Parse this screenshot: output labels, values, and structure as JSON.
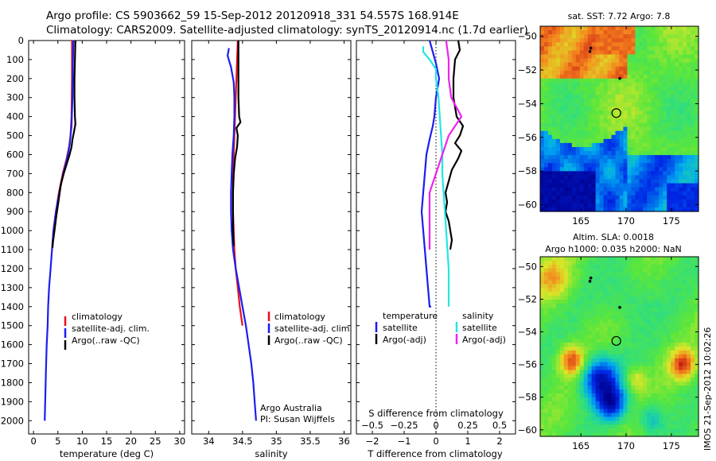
{
  "title": {
    "line1": "Argo profile: CS 5903662_59 15-Sep-2012 20120918_331 54.557S 168.914E",
    "line2": "Climatology: CARS2009. Satellite-adjusted climatology: synTS_20120914.nc (1.7d earlier)"
  },
  "colors": {
    "red": "#e8101a",
    "blue": "#1d1df0",
    "black": "#000000",
    "cyan": "#22e6e6",
    "magenta": "#ee22ee"
  },
  "chart_data": [
    {
      "type": "line",
      "name": "temperature-profile",
      "xlabel": "temperature (deg C)",
      "ylabel": "",
      "xlim": [
        -1,
        31
      ],
      "ylim": [
        2070,
        0
      ],
      "xticks": [
        0,
        5,
        10,
        15,
        20,
        25,
        30
      ],
      "yticks": [
        0,
        100,
        200,
        300,
        400,
        500,
        600,
        700,
        800,
        900,
        1000,
        1100,
        1200,
        1300,
        1400,
        1500,
        1600,
        1700,
        1800,
        1900,
        2000
      ],
      "legend": [
        "climatology",
        "satellite-adj. clim.",
        "Argo(..raw -QC)"
      ],
      "series": [
        {
          "name": "climatology",
          "color": "red",
          "points": [
            [
              7.9,
              0
            ],
            [
              7.9,
              200
            ],
            [
              7.8,
              400
            ],
            [
              7.6,
              500
            ],
            [
              7.3,
              560
            ],
            [
              6.8,
              620
            ],
            [
              6.0,
              700
            ],
            [
              5.2,
              800
            ],
            [
              4.6,
              900
            ],
            [
              4.1,
              1000
            ],
            [
              3.8,
              1100
            ]
          ]
        },
        {
          "name": "satellite-adj. clim.",
          "color": "blue",
          "points": [
            [
              8.2,
              0
            ],
            [
              8.1,
              100
            ],
            [
              8.0,
              300
            ],
            [
              7.8,
              450
            ],
            [
              7.4,
              550
            ],
            [
              6.9,
              620
            ],
            [
              6.1,
              700
            ],
            [
              5.3,
              800
            ],
            [
              4.6,
              900
            ],
            [
              4.1,
              1000
            ],
            [
              3.8,
              1100
            ],
            [
              3.5,
              1200
            ],
            [
              3.2,
              1300
            ],
            [
              3.0,
              1400
            ],
            [
              2.9,
              1500
            ],
            [
              2.7,
              1600
            ],
            [
              2.6,
              1700
            ],
            [
              2.5,
              1800
            ],
            [
              2.4,
              1900
            ],
            [
              2.3,
              2000
            ]
          ]
        },
        {
          "name": "Argo(..raw -QC)",
          "color": "black",
          "points": [
            [
              8.6,
              0
            ],
            [
              8.5,
              100
            ],
            [
              8.4,
              200
            ],
            [
              8.4,
              300
            ],
            [
              8.5,
              400
            ],
            [
              8.6,
              440
            ],
            [
              8.3,
              480
            ],
            [
              8.0,
              520
            ],
            [
              7.8,
              560
            ],
            [
              7.4,
              600
            ],
            [
              6.8,
              650
            ],
            [
              6.2,
              700
            ],
            [
              5.6,
              760
            ],
            [
              5.1,
              850
            ],
            [
              4.7,
              920
            ],
            [
              4.3,
              1000
            ],
            [
              4.0,
              1060
            ],
            [
              3.9,
              1090
            ]
          ]
        }
      ]
    },
    {
      "type": "line",
      "name": "salinity-profile",
      "xlabel": "salinity",
      "ylabel": "",
      "xlim": [
        33.75,
        36.1
      ],
      "ylim": [
        2070,
        0
      ],
      "xticks": [
        34,
        34.5,
        35,
        35.5,
        36
      ],
      "legend": [
        "climatology",
        "satellite-adj. clim.",
        "Argo(..raw -QC)"
      ],
      "annotation": [
        "Argo Australia",
        "PI: Susan Wijffels"
      ],
      "series": [
        {
          "name": "climatology",
          "color": "red",
          "points": [
            [
              34.43,
              0
            ],
            [
              34.42,
              100
            ],
            [
              34.41,
              200
            ],
            [
              34.4,
              300
            ],
            [
              34.39,
              400
            ],
            [
              34.38,
              500
            ],
            [
              34.37,
              600
            ],
            [
              34.36,
              700
            ],
            [
              34.36,
              800
            ],
            [
              34.36,
              900
            ],
            [
              34.37,
              1000
            ],
            [
              34.38,
              1100
            ],
            [
              34.4,
              1200
            ],
            [
              34.43,
              1300
            ],
            [
              34.46,
              1400
            ],
            [
              34.5,
              1500
            ]
          ]
        },
        {
          "name": "satellite-adj. clim.",
          "color": "blue",
          "points": [
            [
              34.3,
              40
            ],
            [
              34.28,
              80
            ],
            [
              34.33,
              140
            ],
            [
              34.37,
              220
            ],
            [
              34.38,
              300
            ],
            [
              34.38,
              400
            ],
            [
              34.37,
              500
            ],
            [
              34.35,
              600
            ],
            [
              34.34,
              700
            ],
            [
              34.33,
              800
            ],
            [
              34.33,
              900
            ],
            [
              34.34,
              1000
            ],
            [
              34.36,
              1100
            ],
            [
              34.4,
              1200
            ],
            [
              34.45,
              1300
            ],
            [
              34.5,
              1400
            ],
            [
              34.55,
              1500
            ],
            [
              34.59,
              1600
            ],
            [
              34.63,
              1700
            ],
            [
              34.66,
              1800
            ],
            [
              34.68,
              1900
            ],
            [
              34.7,
              2000
            ]
          ]
        },
        {
          "name": "Argo(..raw -QC)",
          "color": "black",
          "points": [
            [
              34.44,
              0
            ],
            [
              34.44,
              100
            ],
            [
              34.44,
              200
            ],
            [
              34.44,
              300
            ],
            [
              34.45,
              400
            ],
            [
              34.47,
              430
            ],
            [
              34.41,
              460
            ],
            [
              34.43,
              500
            ],
            [
              34.42,
              560
            ],
            [
              34.39,
              620
            ],
            [
              34.37,
              700
            ],
            [
              34.36,
              800
            ],
            [
              34.36,
              900
            ],
            [
              34.36,
              1000
            ],
            [
              34.37,
              1080
            ]
          ]
        }
      ]
    },
    {
      "type": "line",
      "name": "difference-profile",
      "xlabel": "T difference from climatology",
      "xlabel2": "S difference from climatology",
      "xlim": [
        -2.5,
        2.5
      ],
      "ylim": [
        2070,
        0
      ],
      "xticks": [
        -2,
        -1,
        0,
        1,
        2
      ],
      "xticks2": [
        -0.5,
        -0.25,
        0,
        0.25,
        0.5
      ],
      "legend_headers": [
        "temperature",
        "salinity"
      ],
      "legend": [
        "satellite",
        "Argo(-adj)",
        "satellite",
        "Argo(-adj)"
      ],
      "series": [
        {
          "name": "temperature satellite",
          "color": "blue",
          "points": [
            [
              -0.2,
              0
            ],
            [
              -0.1,
              60
            ],
            [
              0.0,
              120
            ],
            [
              0.1,
              200
            ],
            [
              0.0,
              300
            ],
            [
              -0.05,
              400
            ],
            [
              -0.1,
              450
            ],
            [
              -0.2,
              520
            ],
            [
              -0.3,
              600
            ],
            [
              -0.35,
              700
            ],
            [
              -0.4,
              800
            ],
            [
              -0.45,
              900
            ],
            [
              -0.4,
              1000
            ],
            [
              -0.35,
              1100
            ],
            [
              -0.3,
              1200
            ],
            [
              -0.25,
              1300
            ],
            [
              -0.2,
              1400
            ],
            [
              -0.15,
              1400
            ]
          ]
        },
        {
          "name": "temperature Argo(-adj)",
          "color": "black",
          "points": [
            [
              0.7,
              0
            ],
            [
              0.75,
              50
            ],
            [
              0.6,
              100
            ],
            [
              0.55,
              200
            ],
            [
              0.55,
              300
            ],
            [
              0.65,
              400
            ],
            [
              0.85,
              450
            ],
            [
              0.75,
              500
            ],
            [
              0.6,
              540
            ],
            [
              0.8,
              580
            ],
            [
              0.7,
              620
            ],
            [
              0.5,
              680
            ],
            [
              0.4,
              740
            ],
            [
              0.3,
              800
            ],
            [
              0.35,
              850
            ],
            [
              0.3,
              900
            ],
            [
              0.4,
              950
            ],
            [
              0.45,
              1000
            ],
            [
              0.5,
              1050
            ],
            [
              0.45,
              1100
            ]
          ]
        },
        {
          "name": "salinity satellite",
          "color": "cyan",
          "points": [
            [
              -0.1,
              30
            ],
            [
              -0.1,
              60
            ],
            [
              -0.05,
              100
            ],
            [
              0.0,
              150
            ],
            [
              0.0,
              200
            ],
            [
              0.02,
              300
            ],
            [
              0.03,
              400
            ],
            [
              0.04,
              500
            ],
            [
              0.05,
              600
            ],
            [
              0.05,
              700
            ],
            [
              0.06,
              800
            ],
            [
              0.07,
              900
            ],
            [
              0.08,
              1000
            ],
            [
              0.09,
              1100
            ],
            [
              0.1,
              1200
            ],
            [
              0.1,
              1300
            ],
            [
              0.1,
              1400
            ]
          ]
        },
        {
          "name": "salinity Argo(-adj)",
          "color": "magenta",
          "points": [
            [
              0.08,
              0
            ],
            [
              0.1,
              100
            ],
            [
              0.1,
              200
            ],
            [
              0.12,
              300
            ],
            [
              0.2,
              400
            ],
            [
              0.15,
              450
            ],
            [
              0.1,
              500
            ],
            [
              0.05,
              600
            ],
            [
              0.0,
              700
            ],
            [
              -0.05,
              800
            ],
            [
              -0.05,
              900
            ],
            [
              -0.05,
              1000
            ],
            [
              -0.05,
              1100
            ]
          ]
        }
      ]
    },
    {
      "type": "heatmap",
      "name": "sst-map",
      "title": "sat. SST: 7.72 Argo: 7.8",
      "xticks": [
        165,
        170,
        175
      ],
      "yticks": [
        -50,
        -52,
        -54,
        -56,
        -58,
        -60
      ],
      "xlim": [
        160.5,
        178
      ],
      "ylim": [
        -60.4,
        -49.4
      ],
      "argo_position": [
        168.914,
        -54.557
      ],
      "track_points": [
        [
          166.0,
          -50.9
        ],
        [
          166.1,
          -50.7
        ],
        [
          169.3,
          -52.5
        ]
      ]
    },
    {
      "type": "heatmap",
      "name": "sla-map",
      "title_line1": "Altim. SLA: 0.0018",
      "title_line2": "Argo h1000: 0.035 h2000: NaN",
      "xticks": [
        165,
        170,
        175
      ],
      "yticks": [
        -50,
        -52,
        -54,
        -56,
        -58,
        -60
      ],
      "xlim": [
        160.5,
        178
      ],
      "ylim": [
        -60.4,
        -49.4
      ],
      "argo_position": [
        168.914,
        -54.557
      ],
      "track_points": [
        [
          166.0,
          -50.9
        ],
        [
          166.1,
          -50.7
        ],
        [
          169.3,
          -52.5
        ]
      ]
    }
  ],
  "side_label": "IMOS 21-Sep-2012 10:02:26"
}
